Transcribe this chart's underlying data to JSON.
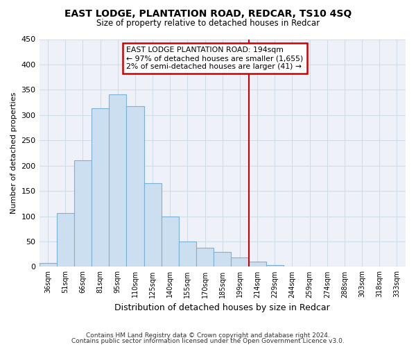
{
  "title": "EAST LODGE, PLANTATION ROAD, REDCAR, TS10 4SQ",
  "subtitle": "Size of property relative to detached houses in Redcar",
  "xlabel": "Distribution of detached houses by size in Redcar",
  "ylabel": "Number of detached properties",
  "footer_line1": "Contains HM Land Registry data © Crown copyright and database right 2024.",
  "footer_line2": "Contains public sector information licensed under the Open Government Licence v3.0.",
  "bar_labels": [
    "36sqm",
    "51sqm",
    "66sqm",
    "81sqm",
    "95sqm",
    "110sqm",
    "125sqm",
    "140sqm",
    "155sqm",
    "170sqm",
    "185sqm",
    "199sqm",
    "214sqm",
    "229sqm",
    "244sqm",
    "259sqm",
    "274sqm",
    "288sqm",
    "303sqm",
    "318sqm",
    "333sqm"
  ],
  "bar_values": [
    7,
    106,
    210,
    314,
    341,
    318,
    165,
    99,
    50,
    37,
    30,
    19,
    10,
    4,
    1,
    0,
    0,
    0,
    0,
    0,
    0
  ],
  "bar_color": "#ccdff0",
  "bar_edge_color": "#7ab0d4",
  "vline_x": 11.5,
  "vline_color": "#cc0000",
  "annotation_title": "EAST LODGE PLANTATION ROAD: 194sqm",
  "annotation_line1": "← 97% of detached houses are smaller (1,655)",
  "annotation_line2": "2% of semi-detached houses are larger (41) →",
  "annotation_box_color": "#ffffff",
  "annotation_box_edge": "#cc0000",
  "ylim": [
    0,
    450
  ],
  "background_color": "#ffffff",
  "grid_color": "#d0dce8",
  "plot_bg_color": "#eef2f8"
}
